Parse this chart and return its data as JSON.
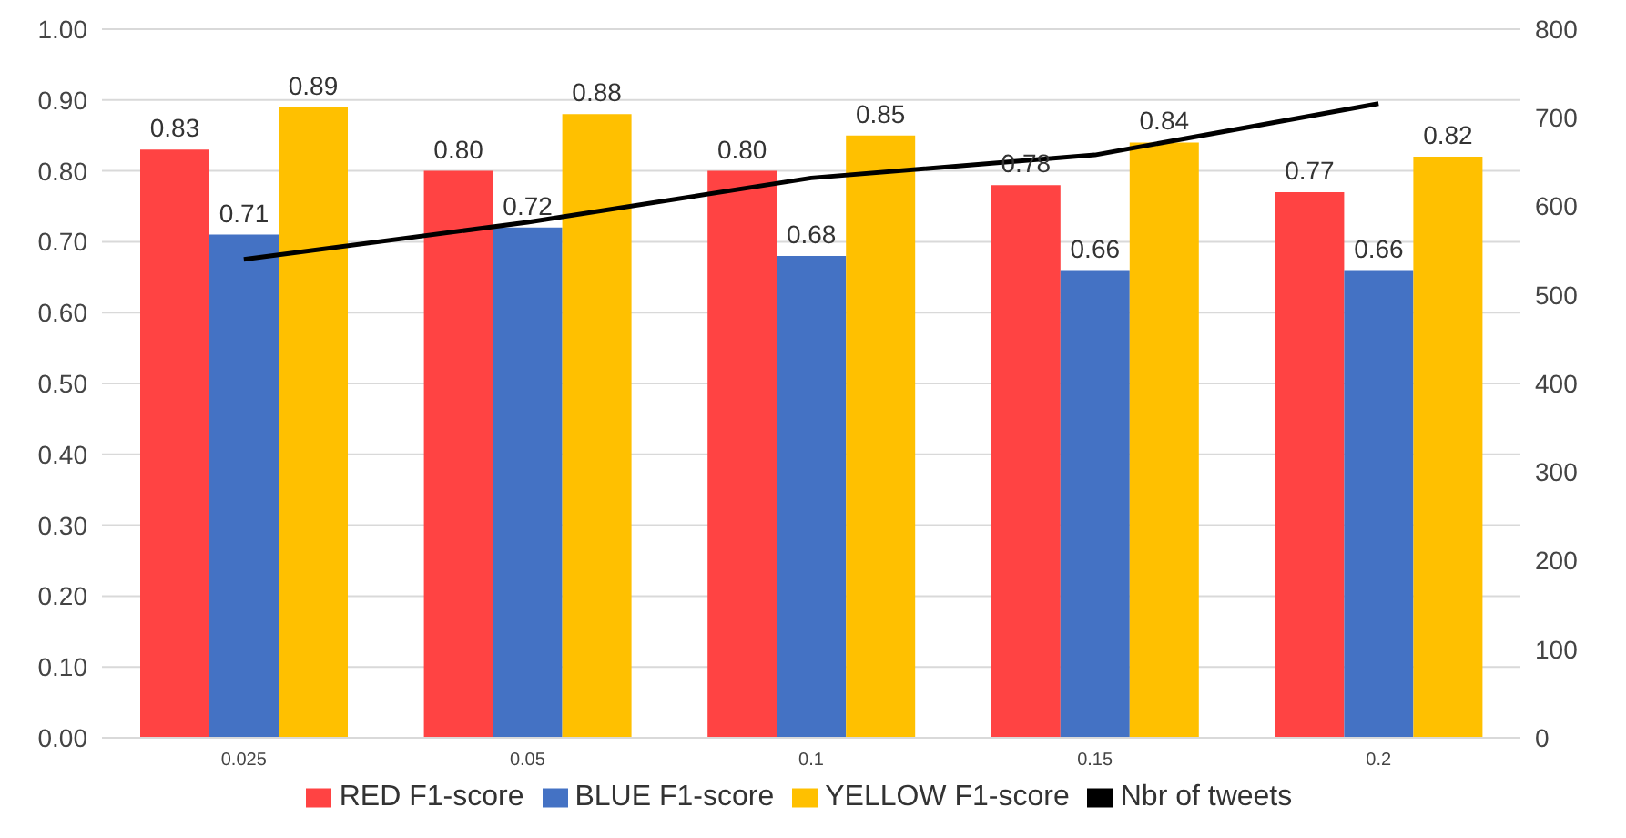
{
  "chart_data": {
    "type": "bar",
    "categories": [
      "0.025",
      "0.05",
      "0.1",
      "0.15",
      "0.2"
    ],
    "series": [
      {
        "name": "RED F1-score",
        "color": "#ff4343",
        "values": [
          0.83,
          0.8,
          0.8,
          0.78,
          0.77
        ],
        "value_labels": [
          "0.83",
          "0.80",
          "0.80",
          "0.78",
          "0.77"
        ]
      },
      {
        "name": "BLUE F1-score",
        "color": "#4472c4",
        "values": [
          0.71,
          0.72,
          0.68,
          0.66,
          0.66
        ],
        "value_labels": [
          "0.71",
          "0.72",
          "0.68",
          "0.66",
          "0.66"
        ]
      },
      {
        "name": "YELLOW F1-score",
        "color": "#ffc000",
        "values": [
          0.89,
          0.88,
          0.85,
          0.84,
          0.82
        ],
        "value_labels": [
          "0.89",
          "0.88",
          "0.85",
          "0.84",
          "0.82"
        ]
      },
      {
        "name": "Nbr of tweets",
        "type": "line",
        "axis": "y2",
        "color": "#000000",
        "values": [
          540,
          582,
          632,
          658,
          716
        ]
      }
    ],
    "ylim": [
      0,
      1
    ],
    "yticks": [
      {
        "value": 0,
        "label": "0.00"
      },
      {
        "value": 0.1,
        "label": "0.10"
      },
      {
        "value": 0.2,
        "label": "0.20"
      },
      {
        "value": 0.3,
        "label": "0.30"
      },
      {
        "value": 0.4,
        "label": "0.40"
      },
      {
        "value": 0.5,
        "label": "0.50"
      },
      {
        "value": 0.6,
        "label": "0.60"
      },
      {
        "value": 0.7,
        "label": "0.70"
      },
      {
        "value": 0.8,
        "label": "0.80"
      },
      {
        "value": 0.9,
        "label": "0.90"
      },
      {
        "value": 1,
        "label": "1.00"
      }
    ],
    "y2lim": [
      0,
      800
    ],
    "y2ticks": [
      0,
      100,
      200,
      300,
      400,
      500,
      600,
      700,
      800
    ],
    "grid": "y",
    "legend": "bottom",
    "marker": "none"
  }
}
